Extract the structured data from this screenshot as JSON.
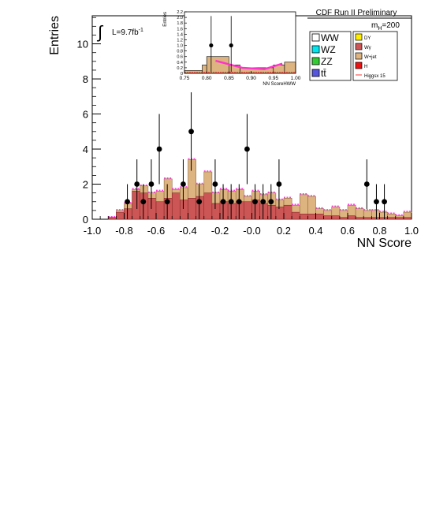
{
  "header": {
    "experiment": "CDF Run II Preliminary",
    "luminosity": "L=9.7fb",
    "luminosity_exp": "-1",
    "mass_prefix": "m",
    "mass_sub": "H",
    "mass_value": "=200"
  },
  "legend": {
    "left": [
      {
        "label": "WW",
        "color": "#ffffff"
      },
      {
        "label": "WZ",
        "color": "#00e5ee"
      },
      {
        "label": "ZZ",
        "color": "#33cc33"
      },
      {
        "label": "tt̄",
        "color": "#5555dd"
      }
    ],
    "right": [
      {
        "label": "DY",
        "color": "#ffee00"
      },
      {
        "label": "Wγ",
        "color": "#cc5555"
      },
      {
        "label": "W+jet",
        "color": "#ddb37f"
      },
      {
        "label": "H",
        "color": "#ee1111"
      },
      {
        "label": "Higgsx 15",
        "color": "#ff3333",
        "line": true
      }
    ]
  },
  "chart_data": [
    {
      "type": "bar",
      "xlabel": "NN Score",
      "ylabel": "Entries",
      "xlim": [
        -1.0,
        1.0
      ],
      "ylim": [
        0,
        11.6
      ],
      "x_ticks": [
        "-1.0",
        "-0.8",
        "-0.6",
        "-0.4",
        "-0.2",
        "-0.0",
        "0.2",
        "0.4",
        "0.6",
        "0.8",
        "1.0"
      ],
      "y_ticks": [
        "0",
        "2",
        "4",
        "6",
        "8",
        "10"
      ],
      "bin_width": 0.05,
      "bin_edges_start": -1.0,
      "series": [
        {
          "name": "Wγ",
          "values": [
            0,
            0,
            0.1,
            0.4,
            0.6,
            1.6,
            1.5,
            1.2,
            1.0,
            1.2,
            1.5,
            1.1,
            1.2,
            1.3,
            1.5,
            0.9,
            1.0,
            0.9,
            1.0,
            1.0,
            1.1,
            0.9,
            0.8,
            0.7,
            0.8,
            0.4,
            0.3,
            0.3,
            0.3,
            0.2,
            0.2,
            0.1,
            0.2,
            0.1,
            0.1,
            0.1,
            0.1,
            0.1,
            0.1,
            0.1
          ]
        },
        {
          "name": "Total background",
          "values": [
            0,
            0,
            0.1,
            0.5,
            0.9,
            1.7,
            1.9,
            1.5,
            1.6,
            2.3,
            1.7,
            1.8,
            3.4,
            2.0,
            2.7,
            1.5,
            1.7,
            1.6,
            1.7,
            1.3,
            1.6,
            1.4,
            1.5,
            1.1,
            1.2,
            0.8,
            1.4,
            1.3,
            0.6,
            0.5,
            0.7,
            0.5,
            0.8,
            0.6,
            0.5,
            0.5,
            0.4,
            0.3,
            0.2,
            0.4
          ]
        },
        {
          "name": "Data",
          "points": [
            [
              -0.78,
              1
            ],
            [
              -0.72,
              2
            ],
            [
              -0.68,
              1
            ],
            [
              -0.63,
              2
            ],
            [
              -0.58,
              4
            ],
            [
              -0.53,
              1
            ],
            [
              -0.43,
              2
            ],
            [
              -0.38,
              5
            ],
            [
              -0.33,
              1
            ],
            [
              -0.23,
              2
            ],
            [
              -0.18,
              1
            ],
            [
              -0.13,
              1
            ],
            [
              -0.08,
              1
            ],
            [
              -0.03,
              4
            ],
            [
              0.02,
              1
            ],
            [
              0.07,
              1
            ],
            [
              0.12,
              1
            ],
            [
              0.17,
              2
            ],
            [
              0.72,
              2
            ],
            [
              0.78,
              1
            ],
            [
              0.83,
              1
            ]
          ]
        }
      ]
    },
    {
      "type": "bar",
      "xlabel": "NN ScoreHWW",
      "ylabel": "Entries",
      "xlim": [
        0.75,
        1.0
      ],
      "ylim": [
        0,
        2.2
      ],
      "x_ticks": [
        "0.75",
        "0.80",
        "0.85",
        "0.90",
        "0.95",
        "1.00"
      ],
      "y_ticks": [
        "0",
        "0.2",
        "0.4",
        "0.6",
        "0.8",
        "1.0",
        "1.2",
        "1.4",
        "1.6",
        "1.8",
        "2.0",
        "2.2"
      ],
      "series": [
        {
          "name": "Background",
          "bins": [
            [
              0.75,
              0.79,
              0.1
            ],
            [
              0.79,
              0.8,
              0.3
            ],
            [
              0.8,
              0.85,
              0.6
            ],
            [
              0.85,
              0.875,
              0.3
            ],
            [
              0.875,
              0.95,
              0.2
            ],
            [
              0.95,
              0.975,
              0.3
            ],
            [
              0.975,
              1.0,
              0.4
            ]
          ]
        },
        {
          "name": "Higgsx 15",
          "points": [
            [
              0.82,
              0.45
            ],
            [
              0.88,
              0.2
            ],
            [
              0.93,
              0.15
            ],
            [
              0.97,
              0.35
            ]
          ]
        },
        {
          "name": "Data",
          "points": [
            [
              0.81,
              1.0
            ],
            [
              0.855,
              1.0
            ]
          ]
        }
      ]
    }
  ]
}
